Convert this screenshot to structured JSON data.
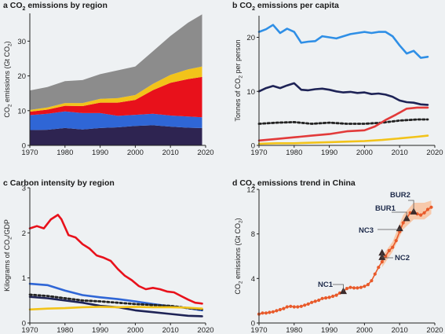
{
  "chart_data": [
    {
      "panel": "a",
      "type": "area",
      "title": "CO₂ emissions by region",
      "xlabel": "",
      "ylabel": "CO₂ emissions (Gt CO₂)",
      "xlim": [
        1970,
        2020
      ],
      "ylim": [
        0,
        38
      ],
      "x_ticks": [
        1970,
        1980,
        1990,
        2000,
        2010,
        2020
      ],
      "y_ticks": [
        0,
        10,
        20,
        30
      ],
      "x": [
        1970,
        1975,
        1980,
        1985,
        1990,
        1995,
        2000,
        2005,
        2010,
        2015,
        2019
      ],
      "stacked": true,
      "series": [
        {
          "color": "#2e2451",
          "values": [
            4.4,
            4.5,
            5.0,
            4.6,
            5.0,
            5.2,
            5.6,
            5.8,
            5.4,
            5.1,
            5.0
          ]
        },
        {
          "color": "#2f66d6",
          "values": [
            4.3,
            4.6,
            4.8,
            4.7,
            4.3,
            3.3,
            3.2,
            3.3,
            3.2,
            3.2,
            3.1
          ]
        },
        {
          "color": "#e8111b",
          "values": [
            1.0,
            1.2,
            1.6,
            2.0,
            3.0,
            3.8,
            4.3,
            6.8,
            9.4,
            10.8,
            11.6
          ]
        },
        {
          "color": "#f2c31a",
          "values": [
            0.5,
            0.6,
            0.8,
            0.9,
            1.1,
            1.3,
            1.4,
            1.8,
            2.3,
            2.8,
            3.0
          ]
        },
        {
          "color": "#8c8c8c",
          "values": [
            5.6,
            5.9,
            6.3,
            6.6,
            7.1,
            8.0,
            8.2,
            9.4,
            11.2,
            13.4,
            15.0
          ]
        }
      ]
    },
    {
      "panel": "b",
      "type": "line",
      "title": "CO₂ emissions per capita",
      "xlabel": "",
      "ylabel": "Tonnes of CO₂ per person",
      "xlim": [
        1970,
        2020
      ],
      "ylim": [
        0,
        24
      ],
      "x_ticks": [
        1970,
        1980,
        1990,
        2000,
        2010,
        2020
      ],
      "y_ticks": [
        0,
        10,
        20
      ],
      "series": [
        {
          "color": "#2f8fe6",
          "dashed": false,
          "x": [
            1970,
            1972,
            1974,
            1976,
            1978,
            1980,
            1982,
            1984,
            1986,
            1988,
            1990,
            1992,
            1994,
            1996,
            1998,
            2000,
            2002,
            2004,
            2006,
            2008,
            2010,
            2012,
            2014,
            2016,
            2018
          ],
          "values": [
            21.0,
            21.5,
            22.3,
            20.8,
            21.6,
            21.0,
            19.0,
            19.2,
            19.3,
            20.2,
            20.0,
            19.8,
            20.2,
            20.6,
            20.8,
            21.0,
            20.8,
            21.0,
            21.0,
            20.2,
            18.5,
            17.0,
            17.5,
            16.2,
            16.4
          ]
        },
        {
          "color": "#1e2356",
          "dashed": false,
          "x": [
            1970,
            1972,
            1974,
            1976,
            1978,
            1980,
            1982,
            1984,
            1986,
            1988,
            1990,
            1992,
            1994,
            1996,
            1998,
            2000,
            2002,
            2004,
            2006,
            2008,
            2010,
            2012,
            2014,
            2016,
            2018
          ],
          "values": [
            10.0,
            10.6,
            11.0,
            10.6,
            11.1,
            11.5,
            10.3,
            10.2,
            10.4,
            10.5,
            10.3,
            10.0,
            9.8,
            9.9,
            9.7,
            9.8,
            9.5,
            9.6,
            9.4,
            9.0,
            8.3,
            8.0,
            7.9,
            7.6,
            7.5
          ]
        },
        {
          "color": "#222222",
          "dashed": true,
          "x": [
            1970,
            1975,
            1980,
            1985,
            1990,
            1995,
            2000,
            2005,
            2010,
            2015,
            2018
          ],
          "values": [
            4.0,
            4.2,
            4.3,
            4.0,
            4.2,
            4.0,
            4.0,
            4.2,
            4.6,
            4.8,
            4.8
          ]
        },
        {
          "color": "#e23a3a",
          "dashed": false,
          "x": [
            1970,
            1975,
            1980,
            1985,
            1990,
            1995,
            2000,
            2003,
            2006,
            2009,
            2012,
            2015,
            2018
          ],
          "values": [
            0.9,
            1.2,
            1.5,
            1.8,
            2.1,
            2.6,
            2.8,
            3.5,
            4.7,
            5.7,
            6.8,
            7.0,
            7.0
          ]
        },
        {
          "color": "#f2c31a",
          "dashed": false,
          "x": [
            1970,
            1975,
            1980,
            1985,
            1990,
            1995,
            2000,
            2005,
            2010,
            2015,
            2018
          ],
          "values": [
            0.3,
            0.4,
            0.4,
            0.5,
            0.6,
            0.7,
            0.8,
            1.0,
            1.3,
            1.6,
            1.8
          ]
        }
      ]
    },
    {
      "panel": "c",
      "type": "line",
      "title": "Carbon intensity by region",
      "xlabel": "",
      "ylabel": "Kilograms of CO₂/GDP",
      "xlim": [
        1970,
        2020
      ],
      "ylim": [
        0,
        3
      ],
      "x_ticks": [
        1970,
        1980,
        1990,
        2000,
        2010,
        2020
      ],
      "y_ticks": [
        0,
        1,
        2,
        3
      ],
      "series": [
        {
          "color": "#e8111b",
          "dashed": false,
          "x": [
            1970,
            1972,
            1974,
            1976,
            1978,
            1979,
            1981,
            1983,
            1985,
            1987,
            1989,
            1991,
            1993,
            1995,
            1997,
            1999,
            2001,
            2003,
            2005,
            2007,
            2009,
            2011,
            2013,
            2015,
            2017,
            2019
          ],
          "values": [
            2.1,
            2.15,
            2.1,
            2.3,
            2.4,
            2.3,
            1.95,
            1.9,
            1.75,
            1.65,
            1.5,
            1.45,
            1.38,
            1.2,
            1.05,
            0.95,
            0.82,
            0.75,
            0.78,
            0.75,
            0.7,
            0.68,
            0.6,
            0.52,
            0.45,
            0.43
          ]
        },
        {
          "color": "#2f66d6",
          "dashed": false,
          "x": [
            1970,
            1975,
            1980,
            1985,
            1990,
            1995,
            2000,
            2005,
            2010,
            2015,
            2019
          ],
          "values": [
            0.87,
            0.84,
            0.72,
            0.62,
            0.57,
            0.53,
            0.48,
            0.42,
            0.37,
            0.33,
            0.28
          ]
        },
        {
          "color": "#222222",
          "dashed": true,
          "x": [
            1970,
            1975,
            1980,
            1985,
            1990,
            1995,
            2000,
            2005,
            2010,
            2015,
            2019
          ],
          "values": [
            0.63,
            0.6,
            0.55,
            0.5,
            0.48,
            0.45,
            0.42,
            0.4,
            0.38,
            0.33,
            0.3
          ]
        },
        {
          "color": "#1e2356",
          "dashed": false,
          "x": [
            1970,
            1975,
            1980,
            1985,
            1990,
            1995,
            2000,
            2005,
            2010,
            2015,
            2019
          ],
          "values": [
            0.58,
            0.55,
            0.5,
            0.45,
            0.38,
            0.35,
            0.28,
            0.24,
            0.2,
            0.16,
            0.15
          ]
        },
        {
          "color": "#f2c31a",
          "dashed": false,
          "x": [
            1970,
            1975,
            1980,
            1985,
            1990,
            1995,
            2000,
            2005,
            2010,
            2015,
            2019
          ],
          "values": [
            0.3,
            0.32,
            0.33,
            0.35,
            0.36,
            0.35,
            0.36,
            0.35,
            0.35,
            0.34,
            0.32
          ]
        }
      ]
    },
    {
      "panel": "d",
      "type": "scatter",
      "title": "CO₂ emissions trend in China",
      "xlabel": "",
      "ylabel": "CO₂ emissions (Gt CO₂)",
      "xlim": [
        1970,
        2020
      ],
      "ylim": [
        0,
        12
      ],
      "x_ticks": [
        1970,
        1980,
        1990,
        2000,
        2010,
        2020
      ],
      "y_ticks": [
        0,
        4,
        8,
        12
      ],
      "line_color": "#e85a2a",
      "band_color": "#f7c9ab",
      "x": [
        1970,
        1971,
        1972,
        1973,
        1974,
        1975,
        1976,
        1977,
        1978,
        1979,
        1980,
        1981,
        1982,
        1983,
        1984,
        1985,
        1986,
        1987,
        1988,
        1989,
        1990,
        1991,
        1992,
        1993,
        1994,
        1995,
        1996,
        1997,
        1998,
        1999,
        2000,
        2001,
        2002,
        2003,
        2004,
        2005,
        2006,
        2007,
        2008,
        2009,
        2010,
        2011,
        2012,
        2013,
        2014,
        2015,
        2016,
        2017,
        2018,
        2019
      ],
      "values": [
        0.8,
        0.9,
        0.9,
        0.95,
        1.0,
        1.1,
        1.2,
        1.3,
        1.45,
        1.5,
        1.45,
        1.45,
        1.5,
        1.6,
        1.7,
        1.85,
        1.95,
        2.05,
        2.2,
        2.25,
        2.3,
        2.4,
        2.5,
        2.7,
        2.85,
        3.1,
        3.2,
        3.15,
        3.15,
        3.2,
        3.3,
        3.45,
        3.8,
        4.4,
        5.0,
        5.5,
        6.0,
        6.5,
        6.8,
        7.4,
        8.2,
        9.0,
        9.4,
        9.9,
        10.0,
        9.8,
        9.7,
        9.9,
        10.2,
        10.4
      ],
      "band_x": [
        2005,
        2008,
        2011,
        2014,
        2017,
        2019
      ],
      "band_low": [
        5.0,
        6.4,
        8.4,
        9.3,
        9.3,
        9.8
      ],
      "band_high": [
        6.0,
        7.3,
        9.7,
        10.8,
        10.8,
        11.0
      ],
      "markers": [
        {
          "label": "NC1",
          "x": 1994,
          "y": 2.85
        },
        {
          "label": "NC2",
          "x": 2005,
          "y": 5.9
        },
        {
          "label": "NC2",
          "x": 2005,
          "y": 6.3
        },
        {
          "label": "NC3",
          "x": 2010,
          "y": 8.5
        },
        {
          "label": "BUR1",
          "x": 2012,
          "y": 9.4
        },
        {
          "label": "BUR2",
          "x": 2014,
          "y": 10.0
        }
      ],
      "annotations": [
        "NC1",
        "NC2",
        "NC3",
        "BUR1",
        "BUR2"
      ]
    }
  ],
  "panels": [
    {
      "letter": "a",
      "title_pre": "CO",
      "title_sub": "2",
      "title_post": " emissions by region",
      "ylabel_pre": "CO",
      "ylabel_sub": "2",
      "ylabel_post": " emissions (Gt CO",
      "ylabel_sub2": "2",
      "ylabel_end": ")"
    },
    {
      "letter": "b",
      "title_pre": "CO",
      "title_sub": "2",
      "title_post": " emissions per capita",
      "ylabel_pre": "Tonnes of CO",
      "ylabel_sub": "2",
      "ylabel_post": " per person",
      "ylabel_sub2": "",
      "ylabel_end": ""
    },
    {
      "letter": "c",
      "title_pre": "Carbon intensity by region",
      "title_sub": "",
      "title_post": "",
      "ylabel_pre": "Kilograms of CO",
      "ylabel_sub": "2",
      "ylabel_post": "/GDP",
      "ylabel_sub2": "",
      "ylabel_end": ""
    },
    {
      "letter": "d",
      "title_pre": "CO",
      "title_sub": "2",
      "title_post": "  emissions trend in China",
      "ylabel_pre": "CO",
      "ylabel_sub": "2",
      "ylabel_post": " emissions (Gt CO",
      "ylabel_sub2": "2",
      "ylabel_end": ")"
    }
  ]
}
